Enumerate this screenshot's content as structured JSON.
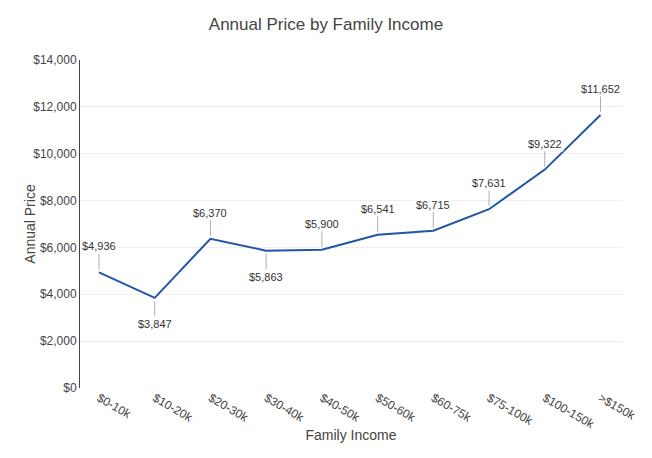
{
  "chart_data": {
    "type": "line",
    "title": "Annual Price by Family Income",
    "xlabel": "Family Income",
    "ylabel": "Annual Price",
    "categories": [
      "$0-10k",
      "$10-20k",
      "$20-30k",
      "$30-40k",
      "$40-50k",
      "$50-60k",
      "$60-75k",
      "$75-100k",
      "$100-150k",
      ">$150k"
    ],
    "values": [
      4936,
      3847,
      6370,
      5863,
      5900,
      6541,
      6715,
      7631,
      9322,
      11652
    ],
    "value_labels": [
      "$4,936",
      "$3,847",
      "$6,370",
      "$5,863",
      "$5,900",
      "$6,541",
      "$6,715",
      "$7,631",
      "$9,322",
      "$11,652"
    ],
    "data_labels": true,
    "color": "#2255a4",
    "ylim": [
      0,
      14000
    ],
    "yticks": [
      {
        "value": 0,
        "label": "$0"
      },
      {
        "value": 2000,
        "label": "$2,000"
      },
      {
        "value": 4000,
        "label": "$4,000"
      },
      {
        "value": 6000,
        "label": "$6,000"
      },
      {
        "value": 8000,
        "label": "$8,000"
      },
      {
        "value": 10000,
        "label": "$10,000"
      },
      {
        "value": 12000,
        "label": "$12,000"
      },
      {
        "value": 14000,
        "label": "$14,000"
      }
    ],
    "grid": true
  }
}
